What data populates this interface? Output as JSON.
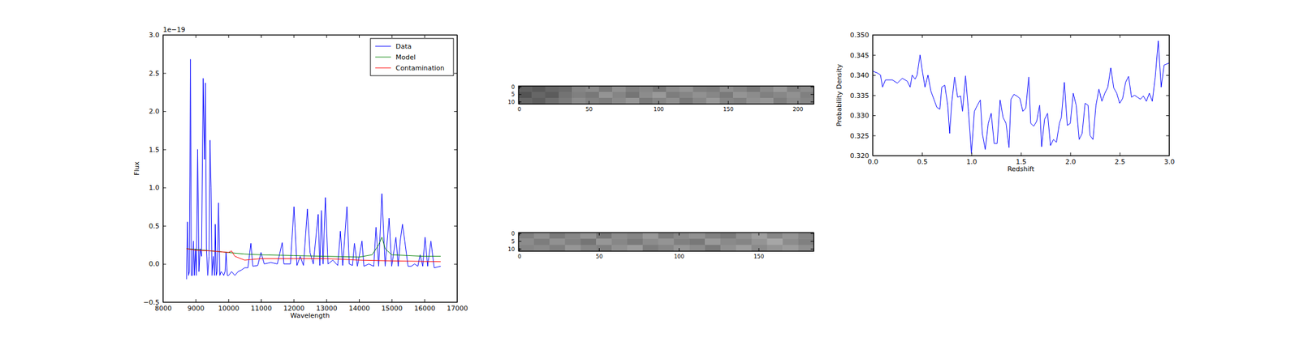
{
  "chart_data": [
    {
      "type": "line",
      "xlabel": "Wavelength",
      "ylabel": "Flux",
      "annotations": [
        "1e−19"
      ],
      "xlim": [
        8000,
        17000
      ],
      "xticks": [
        8000,
        9000,
        10000,
        11000,
        12000,
        13000,
        14000,
        15000,
        16000,
        17000
      ],
      "ylim": [
        -0.5,
        3.0
      ],
      "yticks": [
        {
          "value": -0.5,
          "label": "−0.5"
        },
        {
          "value": 0,
          "label": "0.0"
        },
        0.5,
        {
          "value": 1,
          "label": "1.0"
        },
        1.5,
        {
          "value": 2,
          "label": "2.0"
        },
        2.5,
        {
          "value": 3,
          "label": "3.0"
        }
      ],
      "legend": "upper right",
      "series": [
        {
          "name": "Data",
          "color": "#0000ff",
          "x": [
            8720,
            8750,
            8780,
            8810,
            8840,
            8870,
            8900,
            8930,
            8960,
            8990,
            9020,
            9060,
            9100,
            9140,
            9180,
            9230,
            9270,
            9300,
            9330,
            9370,
            9410,
            9440,
            9470,
            9500,
            9540,
            9580,
            9600,
            9630,
            9660,
            9700,
            9740,
            9780,
            9820,
            9860,
            9900,
            9930,
            9970,
            10010,
            10100,
            10200,
            10300,
            10400,
            10500,
            10600,
            10690,
            10750,
            10900,
            11000,
            11100,
            11300,
            11500,
            11650,
            11700,
            11900,
            12010,
            12100,
            12200,
            12300,
            12420,
            12500,
            12600,
            12750,
            12800,
            12850,
            12900,
            12970,
            13050,
            13200,
            13350,
            13430,
            13500,
            13630,
            13700,
            13800,
            13860,
            13950,
            14090,
            14150,
            14300,
            14450,
            14520,
            14600,
            14700,
            14800,
            14920,
            15000,
            15130,
            15200,
            15260,
            15330,
            15400,
            15500,
            15600,
            15700,
            15800,
            15870,
            15950,
            16020,
            16100,
            16200,
            16300,
            16500
          ],
          "values": [
            -0.2,
            0.55,
            -0.15,
            -0.1,
            2.68,
            -0.15,
            -0.15,
            0.3,
            -0.15,
            0.2,
            -0.15,
            1.5,
            -0.1,
            0.2,
            0.1,
            2.43,
            1.37,
            2.37,
            0.2,
            -0.15,
            0.1,
            1.62,
            1.0,
            -0.15,
            0.1,
            -0.15,
            0.52,
            -0.15,
            -0.1,
            0.8,
            -0.15,
            -0.1,
            -0.12,
            -0.15,
            -0.1,
            0.15,
            -0.15,
            -0.15,
            -0.1,
            -0.15,
            -0.1,
            -0.08,
            -0.05,
            -0.05,
            0.27,
            -0.03,
            -0.02,
            0.15,
            0.0,
            0.02,
            0.0,
            0.28,
            0.0,
            0.0,
            0.75,
            -0.02,
            0.1,
            -0.02,
            0.72,
            0.15,
            0.0,
            0.65,
            -0.02,
            0.7,
            0.0,
            0.87,
            0.0,
            0.05,
            -0.02,
            0.43,
            -0.02,
            0.75,
            0.0,
            -0.02,
            0.27,
            -0.03,
            0.3,
            -0.03,
            0.0,
            -0.03,
            0.48,
            -0.03,
            0.92,
            -0.03,
            0.6,
            -0.03,
            0.35,
            -0.03,
            0.3,
            0.52,
            0.3,
            -0.03,
            -0.03,
            0.0,
            -0.03,
            0.12,
            -0.03,
            0.35,
            -0.03,
            0.3,
            -0.05,
            -0.03
          ]
        },
        {
          "name": "Model",
          "color": "#008000",
          "x": [
            8720,
            9000,
            9500,
            10000,
            10500,
            11000,
            12000,
            13000,
            14000,
            14400,
            14600,
            14700,
            14800,
            15000,
            15500,
            16000,
            16500
          ],
          "values": [
            0.2,
            0.19,
            0.17,
            0.15,
            0.13,
            0.12,
            0.11,
            0.1,
            0.09,
            0.12,
            0.25,
            0.35,
            0.2,
            0.12,
            0.11,
            0.1,
            0.1
          ]
        },
        {
          "name": "Contamination",
          "color": "#ff0000",
          "x": [
            8720,
            9000,
            9500,
            10000,
            10100,
            10200,
            10500,
            11000,
            12000,
            13000,
            14000,
            15000,
            16500
          ],
          "values": [
            0.2,
            0.18,
            0.17,
            0.15,
            0.17,
            0.1,
            0.05,
            0.07,
            0.07,
            0.07,
            0.05,
            0.04,
            0.03
          ]
        }
      ]
    },
    {
      "type": "heatmap",
      "xlim": [
        -0.5,
        211.5
      ],
      "xticks": [
        0,
        50,
        100,
        150,
        200
      ],
      "ylim": [
        11.5,
        -0.5
      ],
      "yticks": [
        0,
        5,
        10
      ],
      "cells": [
        [
          0.38,
          0.35,
          0.4,
          0.42,
          0.52,
          0.55,
          0.48,
          0.57,
          0.5,
          0.53,
          0.47,
          0.55,
          0.58,
          0.5,
          0.49,
          0.56,
          0.52,
          0.47,
          0.54,
          0.6,
          0.51,
          0.55
        ],
        [
          0.33,
          0.4,
          0.36,
          0.45,
          0.5,
          0.47,
          0.58,
          0.52,
          0.46,
          0.55,
          0.6,
          0.49,
          0.52,
          0.57,
          0.53,
          0.48,
          0.58,
          0.55,
          0.5,
          0.53,
          0.57,
          0.5
        ],
        [
          0.4,
          0.37,
          0.43,
          0.48,
          0.55,
          0.51,
          0.49,
          0.54,
          0.59,
          0.48,
          0.52,
          0.56,
          0.47,
          0.53,
          0.6,
          0.52,
          0.5,
          0.57,
          0.59,
          0.49,
          0.55,
          0.52
        ]
      ]
    },
    {
      "type": "heatmap",
      "xlim": [
        -0.5,
        184.5
      ],
      "xticks": [
        0,
        50,
        100,
        150
      ],
      "ylim": [
        11.5,
        -0.5
      ],
      "yticks": [
        0,
        5,
        10
      ],
      "cells": [
        [
          0.5,
          0.56,
          0.48,
          0.53,
          0.58,
          0.47,
          0.55,
          0.52,
          0.6,
          0.49,
          0.54,
          0.57,
          0.51,
          0.48,
          0.56,
          0.62,
          0.53,
          0.58,
          0.52
        ],
        [
          0.55,
          0.49,
          0.57,
          0.51,
          0.46,
          0.59,
          0.53,
          0.48,
          0.55,
          0.58,
          0.5,
          0.47,
          0.6,
          0.54,
          0.52,
          0.58,
          0.65,
          0.55,
          0.5
        ],
        [
          0.52,
          0.54,
          0.5,
          0.59,
          0.53,
          0.5,
          0.57,
          0.61,
          0.49,
          0.53,
          0.59,
          0.55,
          0.48,
          0.57,
          0.62,
          0.54,
          0.58,
          0.61,
          0.56
        ]
      ]
    },
    {
      "type": "line",
      "xlabel": "Redshift",
      "ylabel": "Probability Density",
      "xlim": [
        0,
        3
      ],
      "xticks": [
        {
          "value": 0,
          "label": "0.0"
        },
        {
          "value": 0.5,
          "label": "0.5"
        },
        {
          "value": 1,
          "label": "1.0"
        },
        {
          "value": 1.5,
          "label": "1.5"
        },
        {
          "value": 2,
          "label": "2.0"
        },
        {
          "value": 2.5,
          "label": "2.5"
        },
        {
          "value": 3,
          "label": "3.0"
        }
      ],
      "ylim": [
        0.32,
        0.35
      ],
      "yticks": [
        {
          "value": 0.32,
          "label": "0.320"
        },
        {
          "value": 0.325,
          "label": "0.325"
        },
        {
          "value": 0.33,
          "label": "0.330"
        },
        {
          "value": 0.335,
          "label": "0.335"
        },
        {
          "value": 0.34,
          "label": "0.340"
        },
        {
          "value": 0.345,
          "label": "0.345"
        },
        {
          "value": 0.35,
          "label": "0.350"
        }
      ],
      "series": [
        {
          "color": "#0000ff",
          "x": [
            0,
            0.05,
            0.08,
            0.1,
            0.13,
            0.2,
            0.25,
            0.3,
            0.35,
            0.38,
            0.4,
            0.43,
            0.45,
            0.48,
            0.5,
            0.53,
            0.56,
            0.59,
            0.62,
            0.65,
            0.68,
            0.7,
            0.73,
            0.76,
            0.78,
            0.8,
            0.83,
            0.86,
            0.89,
            0.91,
            0.94,
            0.97,
            1.0,
            1.03,
            1.06,
            1.09,
            1.11,
            1.14,
            1.17,
            1.2,
            1.23,
            1.26,
            1.29,
            1.32,
            1.35,
            1.38,
            1.4,
            1.43,
            1.46,
            1.49,
            1.52,
            1.55,
            1.58,
            1.6,
            1.63,
            1.66,
            1.69,
            1.71,
            1.74,
            1.77,
            1.8,
            1.83,
            1.86,
            1.89,
            1.91,
            1.94,
            1.97,
            2.0,
            2.03,
            2.06,
            2.09,
            2.12,
            2.15,
            2.18,
            2.2,
            2.23,
            2.26,
            2.29,
            2.32,
            2.35,
            2.38,
            2.41,
            2.44,
            2.47,
            2.5,
            2.53,
            2.56,
            2.59,
            2.62,
            2.65,
            2.68,
            2.71,
            2.74,
            2.77,
            2.8,
            2.83,
            2.86,
            2.89,
            2.92,
            2.95,
            3.0
          ],
          "values": [
            0.341,
            0.3405,
            0.34,
            0.337,
            0.3388,
            0.3388,
            0.338,
            0.3392,
            0.3385,
            0.337,
            0.34,
            0.339,
            0.34,
            0.345,
            0.3415,
            0.337,
            0.34,
            0.336,
            0.334,
            0.332,
            0.3315,
            0.337,
            0.3375,
            0.3325,
            0.3255,
            0.333,
            0.3395,
            0.3345,
            0.3348,
            0.331,
            0.3398,
            0.331,
            0.3205,
            0.331,
            0.3325,
            0.3338,
            0.3255,
            0.3215,
            0.328,
            0.3305,
            0.323,
            0.323,
            0.3338,
            0.3295,
            0.328,
            0.322,
            0.334,
            0.3352,
            0.3348,
            0.3342,
            0.331,
            0.3318,
            0.3395,
            0.328,
            0.3273,
            0.3285,
            0.3325,
            0.3222,
            0.329,
            0.3305,
            0.3225,
            0.324,
            0.3233,
            0.328,
            0.3295,
            0.3382,
            0.3275,
            0.328,
            0.3355,
            0.3325,
            0.324,
            0.3255,
            0.333,
            0.3325,
            0.325,
            0.324,
            0.3325,
            0.3365,
            0.3335,
            0.3355,
            0.337,
            0.3418,
            0.3368,
            0.3355,
            0.333,
            0.3342,
            0.3382,
            0.3397,
            0.3345,
            0.335,
            0.3345,
            0.334,
            0.3348,
            0.3335,
            0.3355,
            0.3335,
            0.3395,
            0.3485,
            0.337,
            0.3425,
            0.343
          ]
        }
      ]
    }
  ]
}
